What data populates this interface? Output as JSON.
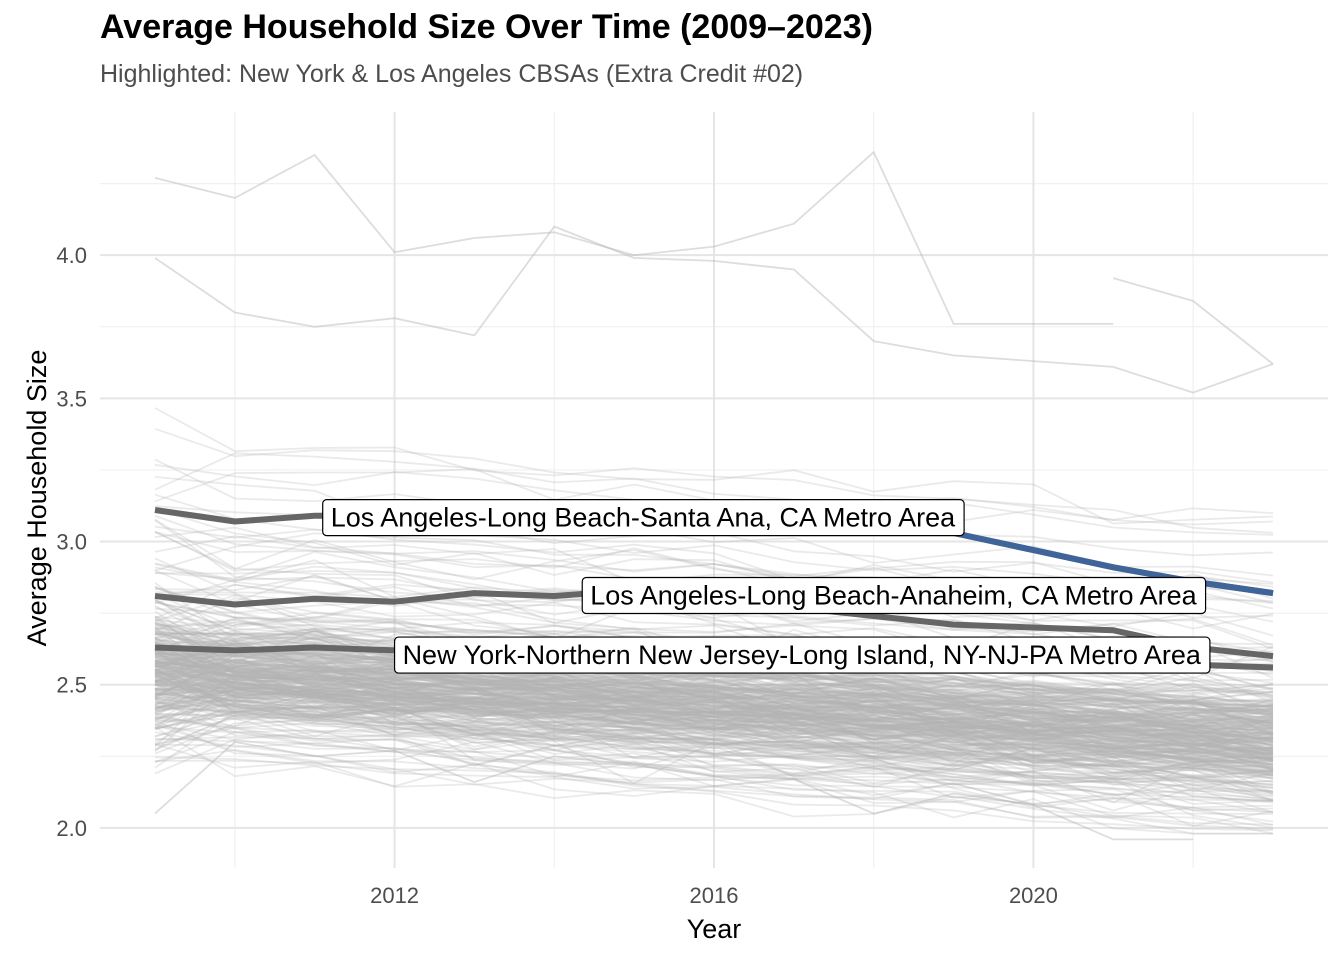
{
  "chart_data": {
    "type": "line",
    "title": "Average Household Size Over Time (2009–2023)",
    "subtitle": "Highlighted: New York & Los Angeles CBSAs (Extra Credit #02)",
    "xlabel": "Year",
    "ylabel": "Average Household Size",
    "xlim": [
      2009,
      2023
    ],
    "ylim": [
      1.86,
      4.5
    ],
    "x_ticks": [
      2012,
      2016,
      2020
    ],
    "x_tick_labels": [
      "2012",
      "2016",
      "2020"
    ],
    "y_ticks": [
      2.0,
      2.5,
      3.0,
      3.5,
      4.0
    ],
    "y_tick_labels": [
      "2.0",
      "2.5",
      "3.0",
      "3.5",
      "4.0"
    ],
    "grid": true,
    "legend": "none",
    "background_series": {
      "description_count": 380,
      "color": "#b3b3b3",
      "years": [
        2009,
        2010,
        2011,
        2012,
        2013,
        2014,
        2015,
        2016,
        2017,
        2018,
        2019,
        2020,
        2021,
        2022,
        2023
      ],
      "typical_range": [
        2.2,
        3.8
      ],
      "central_value": 2.55,
      "selected_values": [
        [
          4.27,
          4.2,
          4.35,
          4.01,
          4.06,
          4.08,
          4.0,
          4.03,
          4.11,
          4.36,
          3.76,
          3.76,
          3.76,
          null,
          null
        ],
        [
          3.99,
          3.8,
          3.75,
          3.78,
          3.72,
          4.1,
          3.99,
          3.98,
          3.95,
          3.7,
          3.65,
          3.63,
          3.61,
          3.52,
          3.62
        ],
        [
          null,
          null,
          null,
          null,
          null,
          null,
          null,
          null,
          null,
          null,
          null,
          null,
          3.92,
          3.84,
          3.62
        ],
        [
          2.05,
          2.3,
          2.25,
          2.27,
          2.16,
          2.25,
          2.22,
          2.18,
          2.17,
          2.05,
          2.12,
          2.08,
          1.96,
          1.96,
          null
        ]
      ]
    },
    "series": [
      {
        "name": "Los Angeles-Long Beach-Santa Ana, CA Metro Area",
        "x": [
          2009,
          2010,
          2011,
          2012,
          2013,
          2014,
          2015,
          2016,
          2017,
          2018,
          2019,
          2020,
          2021,
          2022,
          2023
        ],
        "values": [
          3.11,
          3.07,
          3.09,
          3.09,
          3.1,
          3.09,
          3.08,
          3.08,
          3.07,
          3.06,
          3.03,
          2.97,
          2.91,
          2.86,
          2.82
        ],
        "color": "#666666",
        "highlight_color": "#3e6499",
        "label": "Los Angeles-Long Beach-Santa Ana, CA Metro Area"
      },
      {
        "name": "Los Angeles-Long Beach-Anaheim, CA Metro Area",
        "x": [
          2009,
          2010,
          2011,
          2012,
          2013,
          2014,
          2015,
          2016,
          2017,
          2018,
          2019,
          2020,
          2021,
          2022,
          2023
        ],
        "values": [
          2.81,
          2.78,
          2.8,
          2.79,
          2.82,
          2.81,
          2.83,
          2.81,
          2.77,
          2.74,
          2.71,
          2.7,
          2.69,
          2.63,
          2.6
        ],
        "color": "#666666",
        "label": "Los Angeles-Long Beach-Anaheim, CA Metro Area"
      },
      {
        "name": "New York-Northern New Jersey-Long Island, NY-NJ-PA Metro Area",
        "x": [
          2009,
          2010,
          2011,
          2012,
          2013,
          2014,
          2015,
          2016,
          2017,
          2018,
          2019,
          2020,
          2021,
          2022,
          2023
        ],
        "values": [
          2.63,
          2.62,
          2.63,
          2.62,
          2.63,
          2.62,
          2.62,
          2.61,
          2.61,
          2.6,
          2.59,
          2.58,
          2.57,
          2.57,
          2.56
        ],
        "color": "#666666",
        "label": "New York-Northern New Jersey-Long Island, NY-NJ-PA Metro Area"
      }
    ]
  }
}
